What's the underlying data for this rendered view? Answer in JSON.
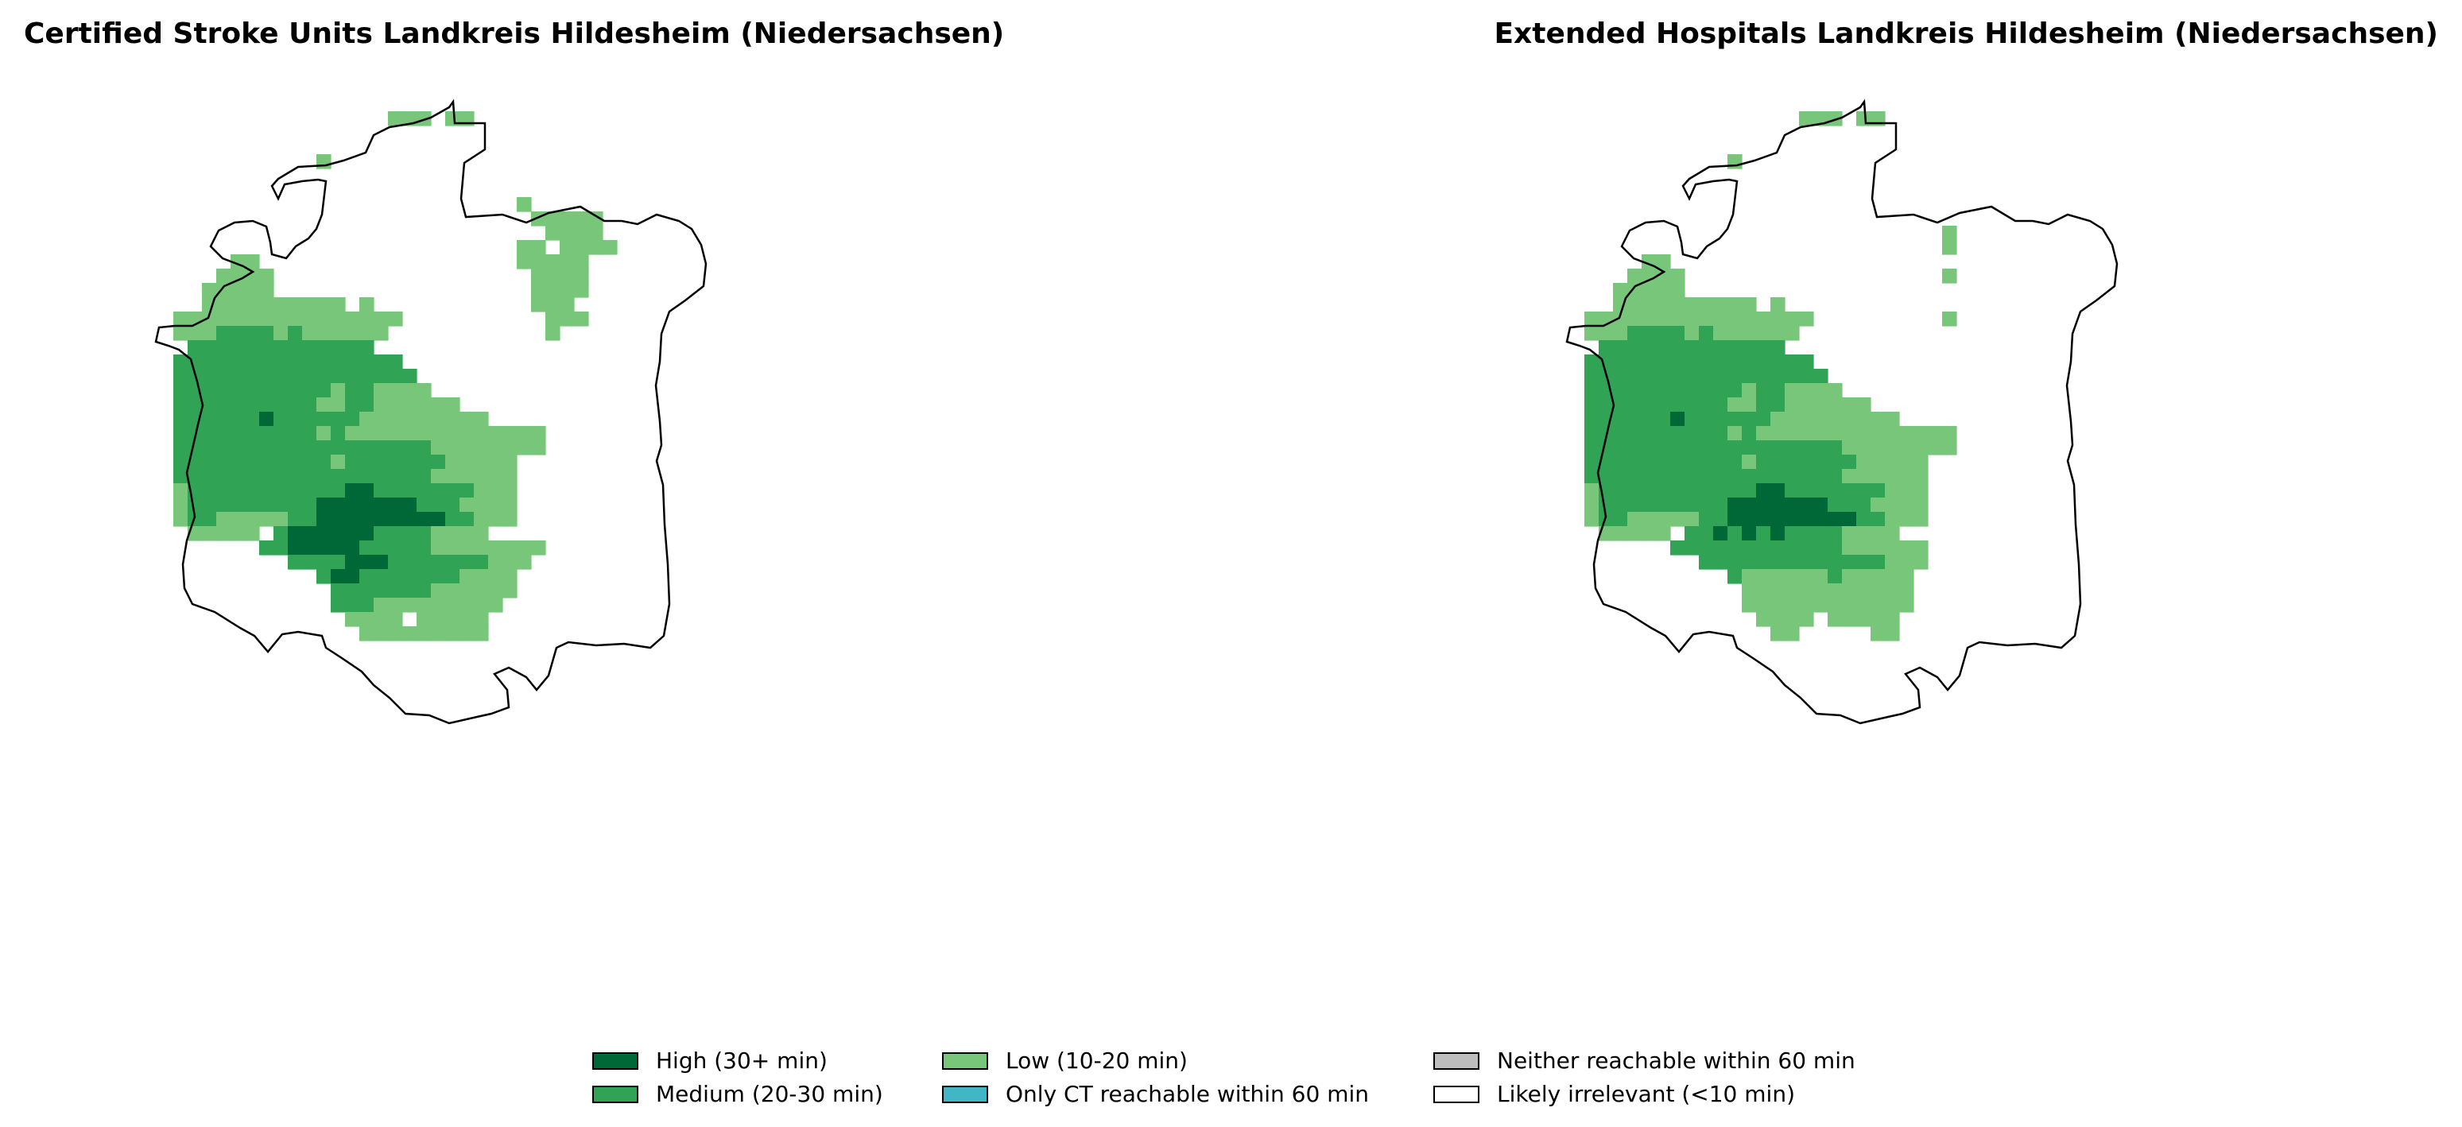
{
  "maps": [
    {
      "title": "Certified Stroke Units Landkreis Hildesheim (Niedersachsen)",
      "variant": "certified"
    },
    {
      "title": "Extended Hospitals Landkreis Hildesheim (Niedersachsen)",
      "variant": "extended"
    }
  ],
  "legend": [
    {
      "label": "High (30+ min)",
      "color": "#006837"
    },
    {
      "label": "Medium (20-30 min)",
      "color": "#31a354"
    },
    {
      "label": "Low (10-20 min)",
      "color": "#78c679"
    },
    {
      "label": "Only CT reachable within 60 min",
      "color": "#41b6c4"
    },
    {
      "label": "Neither reachable within 60 min",
      "color": "#bdbdbd"
    },
    {
      "label": "Likely irrelevant (<10 min)",
      "color": "#ffffff"
    }
  ]
}
